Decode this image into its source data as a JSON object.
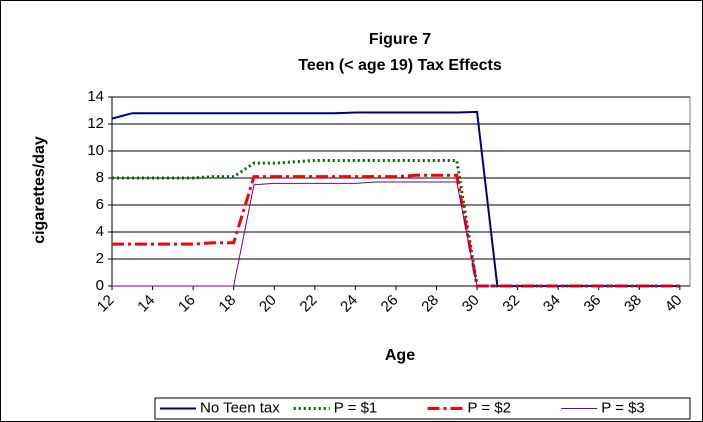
{
  "chart_data": {
    "type": "line",
    "title": "Figure 7",
    "subtitle": "Teen (< age 19) Tax Effects",
    "x_label": "Age",
    "y_label": "cigarettes/day",
    "x": [
      12,
      13,
      14,
      15,
      16,
      17,
      18,
      19,
      20,
      21,
      22,
      23,
      24,
      25,
      26,
      27,
      28,
      29,
      30,
      31,
      32,
      33,
      34,
      35,
      36,
      37,
      38,
      39,
      40
    ],
    "series": [
      {
        "name": "No Teen tax",
        "color": "#000080",
        "style": "solid",
        "values": [
          12.4,
          12.8,
          12.8,
          12.8,
          12.8,
          12.8,
          12.8,
          12.8,
          12.8,
          12.8,
          12.8,
          12.8,
          12.85,
          12.85,
          12.85,
          12.85,
          12.85,
          12.85,
          12.9,
          0,
          0,
          0,
          0,
          0,
          0,
          0,
          0,
          0,
          0
        ]
      },
      {
        "name": "P = $1",
        "color": "#006400",
        "style": "dotted",
        "values": [
          8.0,
          8.0,
          8.0,
          8.0,
          8.0,
          8.1,
          8.1,
          9.1,
          9.1,
          9.2,
          9.3,
          9.3,
          9.3,
          9.3,
          9.3,
          9.3,
          9.3,
          9.3,
          0,
          0,
          0,
          0,
          0,
          0,
          0,
          0,
          0,
          0,
          0
        ]
      },
      {
        "name": "P = $2",
        "color": "#ff0000",
        "style": "dashdot",
        "values": [
          3.1,
          3.1,
          3.1,
          3.1,
          3.1,
          3.2,
          3.2,
          8.1,
          8.1,
          8.1,
          8.1,
          8.1,
          8.1,
          8.1,
          8.1,
          8.2,
          8.2,
          8.2,
          0,
          0,
          0,
          0,
          0,
          0,
          0,
          0,
          0,
          0,
          0
        ]
      },
      {
        "name": "P = $3",
        "color": "#800080",
        "style": "thin",
        "values": [
          0,
          0,
          0,
          0,
          0,
          0,
          0,
          7.5,
          7.6,
          7.6,
          7.6,
          7.6,
          7.6,
          7.7,
          7.7,
          7.7,
          7.7,
          7.7,
          0,
          0,
          0,
          0,
          0,
          0,
          0,
          0,
          0,
          0,
          0
        ]
      }
    ],
    "xlim": [
      12,
      40.5
    ],
    "xticks": [
      12,
      14,
      16,
      18,
      20,
      22,
      24,
      26,
      28,
      30,
      32,
      34,
      36,
      38,
      40
    ],
    "ylim": [
      0,
      14
    ],
    "yticks": [
      0,
      2,
      4,
      6,
      8,
      10,
      12,
      14
    ],
    "grid": true,
    "legend": "bottom"
  }
}
